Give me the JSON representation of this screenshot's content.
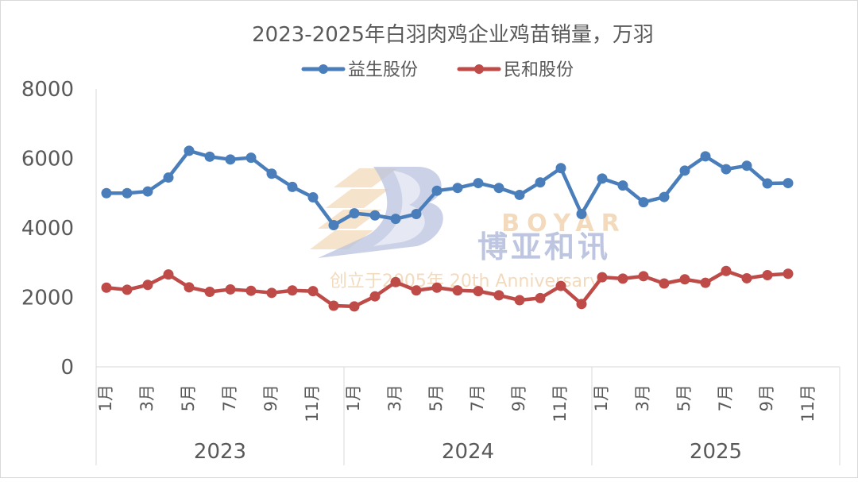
{
  "chart_data": {
    "type": "line",
    "title": "2023-2025年白羽肉鸡企业鸡苗销量，万羽",
    "ylim": [
      0,
      8000
    ],
    "yticks": [
      "0",
      "2000",
      "4000",
      "6000",
      "8000"
    ],
    "x_labels": [
      "1月",
      "",
      "3月",
      "",
      "5月",
      "",
      "7月",
      "",
      "9月",
      "",
      "11月",
      "",
      "1月",
      "",
      "3月",
      "",
      "5月",
      "",
      "7月",
      "",
      "9月",
      "",
      "11月",
      "",
      "1月",
      "",
      "3月",
      "",
      "5月",
      "",
      "7月",
      "",
      "9月",
      "",
      "11月",
      ""
    ],
    "years": [
      "2023",
      "2024",
      "2025"
    ],
    "legend_position": "top",
    "grid": false,
    "series": [
      {
        "name": "益生股份",
        "color": "#4a7ebb",
        "values": [
          5000,
          5000,
          5050,
          5450,
          6220,
          6050,
          5970,
          6020,
          5560,
          5180,
          4880,
          4080,
          4420,
          4360,
          4260,
          4400,
          5070,
          5150,
          5290,
          5150,
          4950,
          5310,
          5720,
          4400,
          5420,
          5220,
          4740,
          4890,
          5650,
          6060,
          5690,
          5790,
          5280,
          5290
        ]
      },
      {
        "name": "民和股份",
        "color": "#be4b48",
        "values": [
          2280,
          2220,
          2360,
          2660,
          2290,
          2160,
          2230,
          2190,
          2130,
          2200,
          2180,
          1760,
          1740,
          2030,
          2440,
          2200,
          2280,
          2200,
          2180,
          2060,
          1920,
          1980,
          2330,
          1810,
          2580,
          2540,
          2610,
          2400,
          2520,
          2420,
          2760,
          2550,
          2640,
          2680
        ]
      }
    ],
    "watermark": {
      "brand_en": "BOYAR",
      "brand_cn": "博亚和讯",
      "tagline": "创立于2005年 20th Anniversary"
    }
  }
}
